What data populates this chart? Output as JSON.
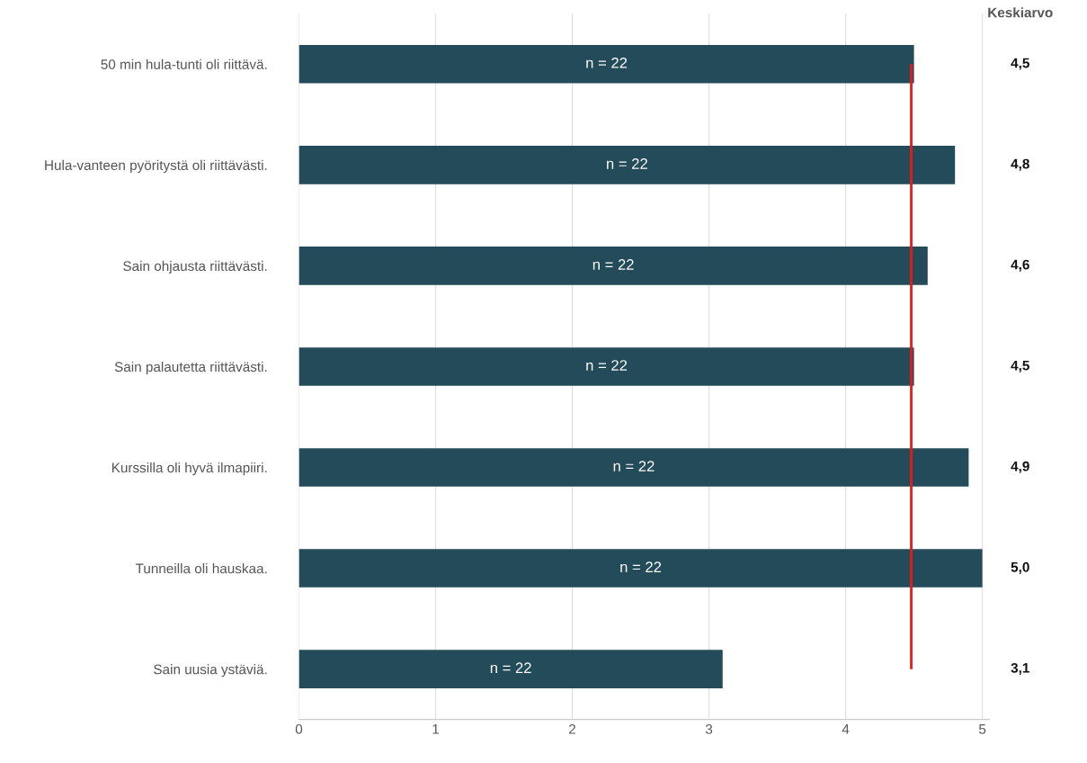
{
  "chart_data": {
    "type": "bar",
    "orientation": "horizontal",
    "categories": [
      "50 min hula-tunti oli riittävä.",
      "Hula-vanteen pyöritystä oli riittävästi.",
      "Sain ohjausta riittävästi.",
      "Sain palautetta riittävästi.",
      "Kurssilla oli hyvä ilmapiiri.",
      "Tunneilla oli hauskaa.",
      "Sain uusia ystäviä."
    ],
    "values": [
      4.5,
      4.8,
      4.6,
      4.5,
      4.9,
      5.0,
      3.1
    ],
    "value_labels": [
      "4,5",
      "4,8",
      "4,6",
      "4,5",
      "4,9",
      "5,0",
      "3,1"
    ],
    "color": "#234b5a",
    "xlim": [
      0,
      5.05
    ],
    "xticks": [
      0,
      1,
      2,
      3,
      4,
      5
    ],
    "grid": "x",
    "ref_lines": [
      {
        "axis": "x",
        "value": 4.48,
        "color": "#e8191b"
      }
    ],
    "annotations": [
      "Keskiarvo",
      "n = 22",
      "n = 22",
      "n = 22",
      "n = 22",
      "n = 22",
      "n = 22",
      "n = 22"
    ]
  }
}
